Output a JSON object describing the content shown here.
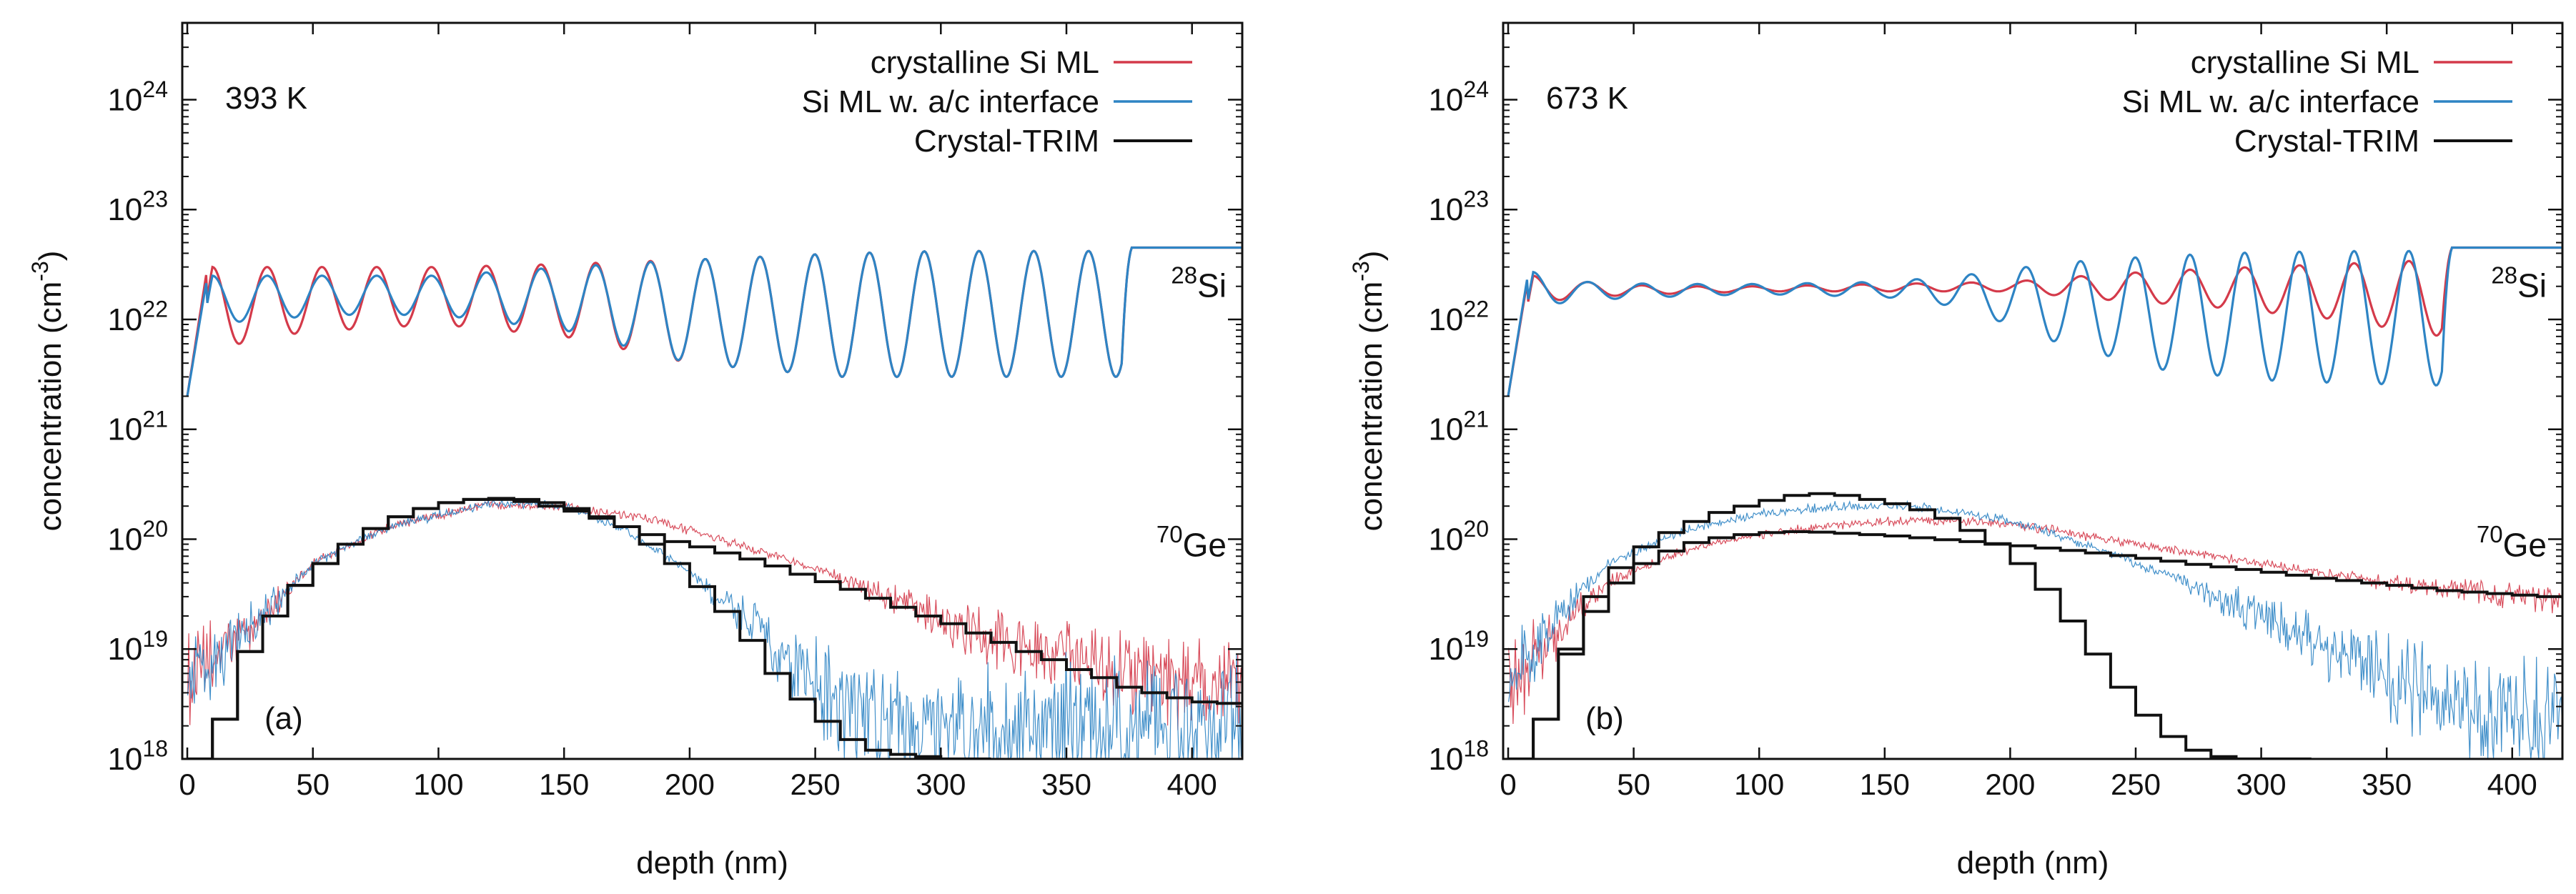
{
  "chart_data": [
    {
      "type": "line",
      "panel_label": "(a)",
      "temperature_label": "393 K",
      "xlabel": "depth (nm)",
      "ylabel": "concentration (cm",
      "ylabel_sup": "-3",
      "ylabel_close": ")",
      "yscale": "log",
      "xlim": [
        -2,
        420
      ],
      "ylim": [
        1e+18,
        5e+24
      ],
      "xticks": [
        "0",
        "50",
        "100",
        "150",
        "200",
        "250",
        "300",
        "350",
        "400"
      ],
      "yticks": [
        {
          "base": "10",
          "exp": "18"
        },
        {
          "base": "10",
          "exp": "19"
        },
        {
          "base": "10",
          "exp": "20"
        },
        {
          "base": "10",
          "exp": "21"
        },
        {
          "base": "10",
          "exp": "22"
        },
        {
          "base": "10",
          "exp": "23"
        },
        {
          "base": "10",
          "exp": "24"
        }
      ],
      "species_labels": [
        {
          "sup": "28",
          "text": "Si"
        },
        {
          "sup": "70",
          "text": "Ge"
        }
      ],
      "series": [
        {
          "name": "crystalline Si ML",
          "color": "#d43a4a",
          "si_profile": {
            "depth": [
              0,
              10,
              30,
              60,
              100,
              150,
              200,
              260,
              300,
              360,
              372,
              380,
              420
            ],
            "min_conc": [
              2e+21,
              5e+21,
              7e+21,
              8e+21,
              9e+21,
              7e+21,
              4e+21,
              3e+21,
              3e+21,
              3e+21,
              3e+21,
              4.5e+22,
              4.5e+22
            ],
            "max_conc": [
              2e+21,
              3e+22,
              3e+22,
              3e+22,
              3e+22,
              3.2e+22,
              3.5e+22,
              4e+22,
              4.2e+22,
              4.2e+22,
              4.2e+22,
              4.5e+22,
              4.5e+22
            ]
          },
          "ge_profile": {
            "depth": [
              0,
              10,
              25,
              50,
              80,
              120,
              150,
              180,
              200,
              250,
              300,
              350,
              420
            ],
            "conc": [
              5e+18,
              8e+18,
              1.5e+19,
              6e+19,
              1.3e+20,
              2.1e+20,
              2e+20,
              1.6e+20,
              1.2e+20,
              5.5e+19,
              1.8e+19,
              8e+18,
              4e+18
            ]
          }
        },
        {
          "name": "Si ML w. a/c interface",
          "color": "#2e84c4",
          "si_profile": {
            "depth": [
              0,
              10,
              30,
              60,
              100,
              150,
              200,
              260,
              300,
              360,
              372,
              380,
              420
            ],
            "min_conc": [
              2e+21,
              9e+21,
              1e+22,
              1.1e+22,
              1.1e+22,
              8e+21,
              4e+21,
              3e+21,
              3e+21,
              3e+21,
              3e+21,
              4.5e+22,
              4.5e+22
            ],
            "max_conc": [
              2e+21,
              2.5e+22,
              2.5e+22,
              2.5e+22,
              2.5e+22,
              3e+22,
              3.5e+22,
              4e+22,
              4.2e+22,
              4.2e+22,
              4.2e+22,
              4.5e+22,
              4.5e+22
            ]
          },
          "ge_profile": {
            "depth": [
              0,
              10,
              25,
              50,
              80,
              120,
              150,
              175,
              200,
              225,
              250,
              265,
              300,
              350,
              420
            ],
            "conc": [
              5e+18,
              8e+18,
              1.5e+19,
              6e+19,
              1.3e+20,
              2.1e+20,
              2e+20,
              1.2e+20,
              5e+19,
              1.6e+19,
              5e+18,
              2.5e+18,
              2e+18,
              2e+18,
              2e+18
            ]
          }
        },
        {
          "name": "Crystal-TRIM",
          "color": "#111111",
          "step": true,
          "profile_a": {
            "depth": [
              0,
              10,
              20,
              30,
              40,
              50,
              60,
              70,
              80,
              90,
              100,
              110,
              120,
              130,
              140,
              150,
              160,
              170,
              180,
              190,
              200,
              210,
              220,
              230,
              240,
              250,
              260,
              270,
              280,
              290,
              300,
              310
            ],
            "conc": [
              1e+18,
              2.3e+18,
              9.5e+18,
              2e+19,
              3.8e+19,
              6e+19,
              9e+19,
              1.25e+20,
              1.6e+20,
              1.9e+20,
              2.15e+20,
              2.3e+20,
              2.35e+20,
              2.3e+20,
              2.15e+20,
              1.9e+20,
              1.6e+20,
              1.3e+20,
              9e+19,
              6e+19,
              3.7e+19,
              2.2e+19,
              1.2e+19,
              6e+18,
              3.5e+18,
              2.2e+18,
              1.5e+18,
              1.2e+18,
              1.1e+18,
              1.05e+18,
              1e+18,
              1e+18
            ]
          },
          "profile_b": {
            "depth": [
              0,
              10,
              20,
              30,
              40,
              50,
              60,
              70,
              80,
              90,
              100,
              110,
              120,
              130,
              140,
              150,
              160,
              170,
              180,
              190,
              200,
              210,
              220,
              230,
              240,
              250,
              260,
              270,
              280,
              290,
              300,
              310,
              320,
              330,
              340,
              350,
              360,
              370,
              380,
              390,
              400,
              410,
              420
            ],
            "conc": [
              1e+18,
              2.3e+18,
              9.5e+18,
              2e+19,
              3.8e+19,
              6e+19,
              9e+19,
              1.25e+20,
              1.6e+20,
              1.9e+20,
              2.15e+20,
              2.3e+20,
              2.3e+20,
              2.2e+20,
              2e+20,
              1.8e+20,
              1.55e+20,
              1.3e+20,
              1.1e+20,
              9.5e+19,
              8.5e+19,
              7.5e+19,
              6.6e+19,
              5.7e+19,
              4.8e+19,
              4.1e+19,
              3.5e+19,
              2.9e+19,
              2.4e+19,
              2e+19,
              1.7e+19,
              1.4e+19,
              1.15e+19,
              9.5e+18,
              8e+18,
              6.5e+18,
              5.5e+18,
              4.5e+18,
              4e+18,
              3.6e+18,
              3.3e+18,
              3.2e+18,
              3.2e+18
            ]
          }
        }
      ]
    },
    {
      "type": "line",
      "panel_label": "(b)",
      "temperature_label": "673 K",
      "xlabel": "depth (nm)",
      "ylabel": "concentration (cm",
      "ylabel_sup": "-3",
      "ylabel_close": ")",
      "yscale": "log",
      "xlim": [
        -2,
        420
      ],
      "ylim": [
        1e+18,
        5e+24
      ],
      "xticks": [
        "0",
        "50",
        "100",
        "150",
        "200",
        "250",
        "300",
        "350",
        "400"
      ],
      "yticks": [
        {
          "base": "10",
          "exp": "18"
        },
        {
          "base": "10",
          "exp": "19"
        },
        {
          "base": "10",
          "exp": "20"
        },
        {
          "base": "10",
          "exp": "21"
        },
        {
          "base": "10",
          "exp": "22"
        },
        {
          "base": "10",
          "exp": "23"
        },
        {
          "base": "10",
          "exp": "24"
        }
      ],
      "species_labels": [
        {
          "sup": "28",
          "text": "Si"
        },
        {
          "sup": "70",
          "text": "Ge"
        }
      ],
      "series": [
        {
          "name": "crystalline Si ML",
          "color": "#d43a4a",
          "si_profile": {
            "depth": [
              0,
              10,
              30,
              60,
              100,
              150,
              200,
              240,
              280,
              330,
              372,
              380,
              420
            ],
            "min_conc": [
              2e+21,
              1.4e+22,
              1.6e+22,
              1.7e+22,
              1.8e+22,
              1.8e+22,
              1.8e+22,
              1.5e+22,
              1.3e+22,
              1e+22,
              7e+21,
              4.5e+22,
              4.5e+22
            ],
            "max_conc": [
              2e+21,
              2.5e+22,
              2.2e+22,
              2e+22,
              2e+22,
              2.1e+22,
              2.2e+22,
              2.6e+22,
              2.9e+22,
              3.2e+22,
              3.5e+22,
              4.5e+22,
              4.5e+22
            ]
          },
          "ge_profile": {
            "depth": [
              0,
              10,
              20,
              40,
              70,
              100,
              130,
              160,
              200,
              250,
              300,
              350,
              420
            ],
            "conc": [
              5e+18,
              8e+18,
              1.5e+19,
              4e+19,
              8e+19,
              1.1e+20,
              1.35e+20,
              1.5e+20,
              1.4e+20,
              9e+19,
              6e+19,
              4e+19,
              2.8e+19
            ]
          }
        },
        {
          "name": "Si ML w. a/c interface",
          "color": "#2e84c4",
          "si_profile": {
            "depth": [
              0,
              10,
              30,
              60,
              100,
              150,
              180,
              220,
              260,
              300,
              340,
              372,
              380,
              420
            ],
            "min_conc": [
              2e+21,
              1.3e+22,
              1.5e+22,
              1.6e+22,
              1.7e+22,
              1.6e+22,
              1.3e+22,
              6e+21,
              3.5e+21,
              2.8e+21,
              2.6e+21,
              2.5e+21,
              4.5e+22,
              4.5e+22
            ],
            "max_conc": [
              2e+21,
              2.7e+22,
              2.2e+22,
              2.1e+22,
              2.1e+22,
              2.2e+22,
              2.5e+22,
              3.3e+22,
              3.8e+22,
              4.1e+22,
              4.2e+22,
              4.2e+22,
              4.5e+22,
              4.5e+22
            ]
          },
          "ge_profile": {
            "depth": [
              0,
              10,
              20,
              40,
              70,
              100,
              130,
              160,
              200,
              230,
              260,
              300,
              350,
              380,
              420
            ],
            "conc": [
              5e+18,
              9e+18,
              2e+19,
              6e+19,
              1.2e+20,
              1.7e+20,
              2e+20,
              2e+20,
              1.5e+20,
              9e+19,
              5e+19,
              2e+19,
              6e+18,
              3e+18,
              2e+18
            ]
          }
        },
        {
          "name": "Crystal-TRIM",
          "color": "#111111",
          "step": true,
          "profile_a": {
            "depth": [
              0,
              10,
              20,
              30,
              40,
              50,
              60,
              70,
              80,
              90,
              100,
              110,
              120,
              130,
              140,
              150,
              160,
              170,
              180,
              190,
              200,
              210,
              220,
              230,
              240,
              250,
              260,
              270,
              280,
              290,
              300,
              310
            ],
            "conc": [
              1e+18,
              2.3e+18,
              1e+19,
              3e+19,
              5.5e+19,
              8.5e+19,
              1.15e+20,
              1.45e+20,
              1.75e+20,
              2e+20,
              2.25e+20,
              2.5e+20,
              2.6e+20,
              2.5e+20,
              2.3e+20,
              2.1e+20,
              1.85e+20,
              1.55e+20,
              1.2e+20,
              9e+19,
              6e+19,
              3.5e+19,
              1.8e+19,
              9e+18,
              4.5e+18,
              2.5e+18,
              1.6e+18,
              1.2e+18,
              1.05e+18,
              1e+18,
              1e+18,
              1e+18
            ]
          },
          "profile_b": {
            "depth": [
              0,
              10,
              20,
              30,
              40,
              50,
              60,
              70,
              80,
              90,
              100,
              110,
              120,
              130,
              140,
              150,
              160,
              170,
              180,
              190,
              200,
              210,
              220,
              230,
              240,
              250,
              260,
              270,
              280,
              290,
              300,
              310,
              320,
              330,
              340,
              350,
              360,
              370,
              380,
              390,
              400,
              410,
              420
            ],
            "conc": [
              1e+18,
              2.3e+18,
              9e+18,
              2.2e+19,
              4e+19,
              6e+19,
              7.8e+19,
              9.3e+19,
              1.03e+20,
              1.1e+20,
              1.15e+20,
              1.17e+20,
              1.16e+20,
              1.13e+20,
              1.1e+20,
              1.07e+20,
              1.03e+20,
              9.9e+19,
              9.5e+19,
              9.1e+19,
              8.7e+19,
              8.3e+19,
              7.9e+19,
              7.5e+19,
              7.1e+19,
              6.7e+19,
              6.3e+19,
              5.9e+19,
              5.6e+19,
              5.3e+19,
              5e+19,
              4.7e+19,
              4.4e+19,
              4.2e+19,
              4e+19,
              3.8e+19,
              3.6e+19,
              3.4e+19,
              3.3e+19,
              3.2e+19,
              3.1e+19,
              3e+19,
              3e+19
            ]
          }
        }
      ]
    }
  ]
}
